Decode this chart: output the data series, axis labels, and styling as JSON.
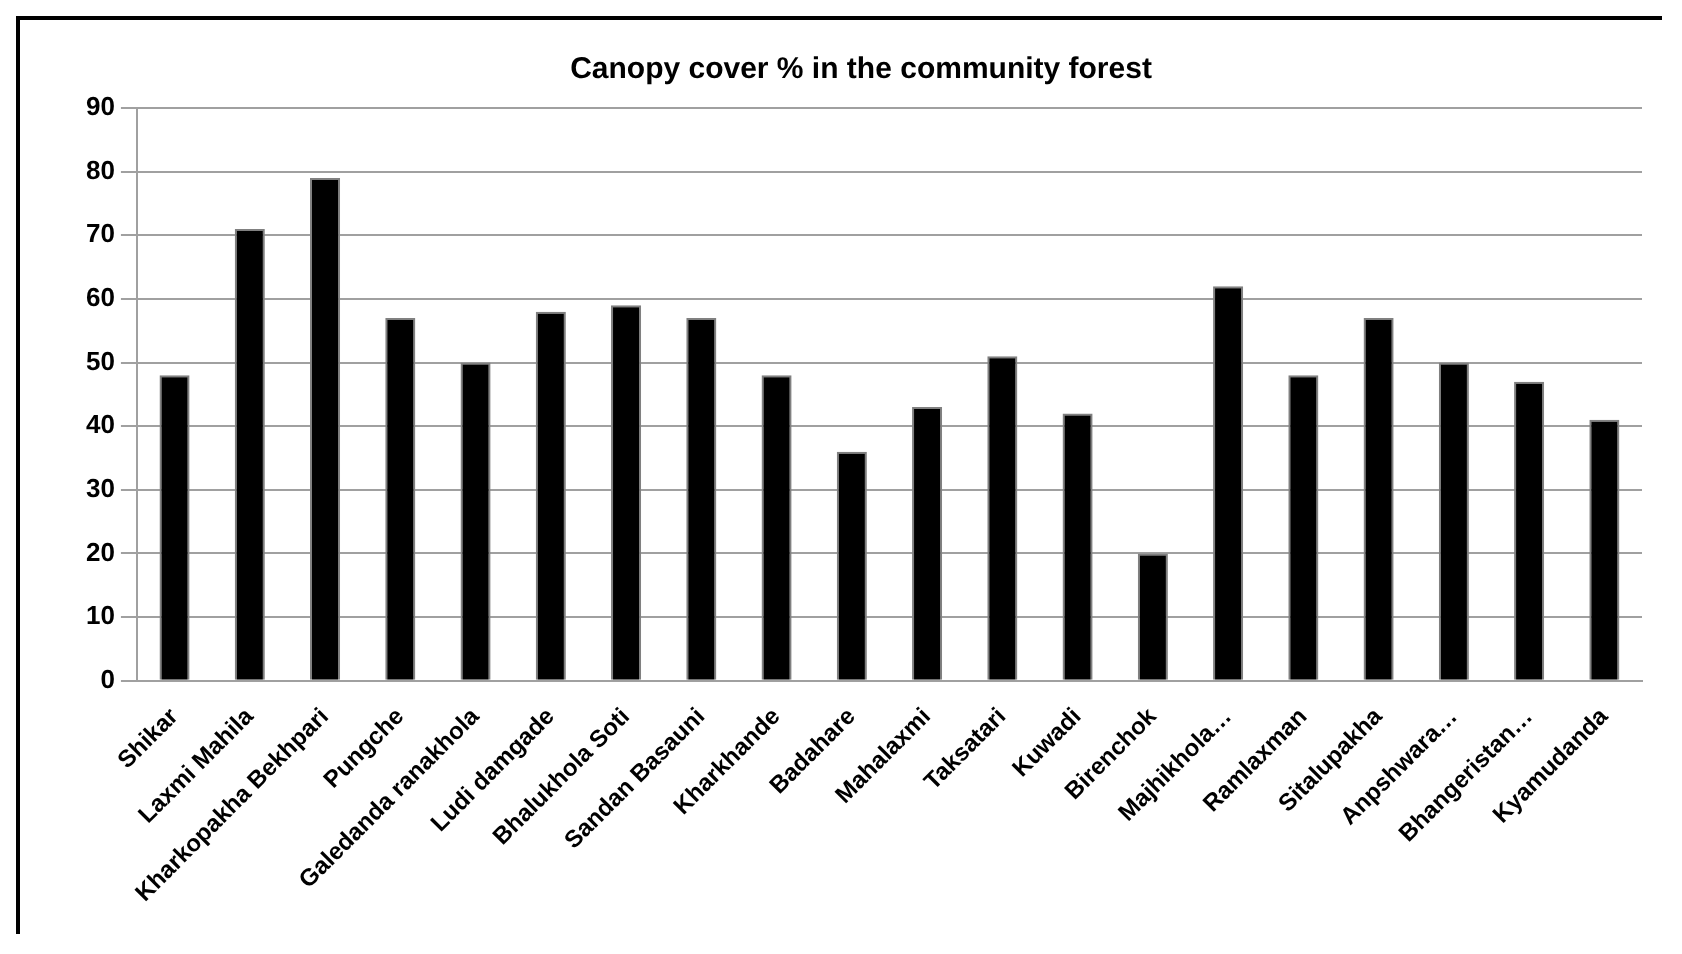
{
  "chart_data": {
    "type": "bar",
    "title": "Canopy cover % in the community forest",
    "categories": [
      "Shikar",
      "Laxmi Mahila",
      "Kharkopakha Bekhpari",
      "Pungche",
      "Galedanda ranakhola",
      "Ludi damgade",
      "Bhalukhola Soti",
      "Sandan Basauni",
      "Kharkhande",
      "Badahare",
      "Mahalaxmi",
      "Taksatari",
      "Kuwadi",
      "Birenchok",
      "Majhikhola…",
      "Ramlaxman",
      "Sitalupakha",
      "Anpshwara…",
      "Bhangeristan…",
      "Kyamudanda"
    ],
    "values": [
      48,
      71,
      79,
      57,
      50,
      58,
      59,
      57,
      48,
      36,
      43,
      51,
      42,
      20,
      62,
      48,
      57,
      50,
      47,
      41
    ],
    "color": "#000000",
    "ylim": [
      0,
      90
    ],
    "yticks": [
      0,
      10,
      20,
      30,
      40,
      50,
      60,
      70,
      80,
      90
    ],
    "grid": "y",
    "legend": false
  }
}
